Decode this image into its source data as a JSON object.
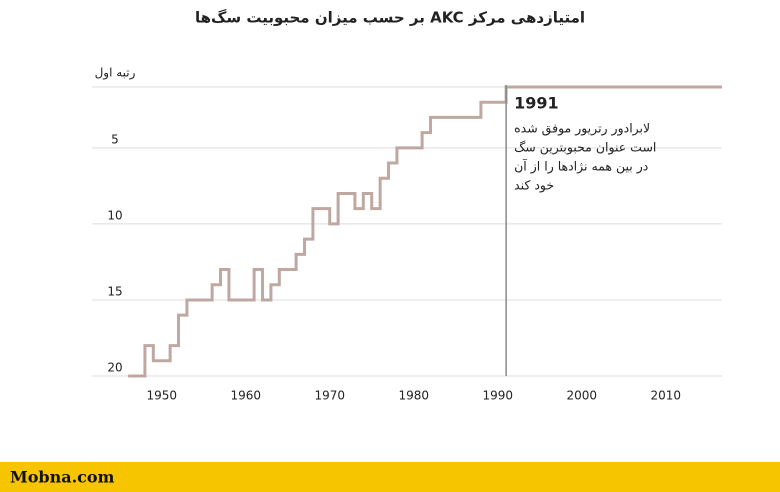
{
  "chart_data": {
    "type": "step",
    "title": "امتیازدهی مرکز AKC بر حسب میزان محبوبیت سگ‌ها",
    "x": [
      1946,
      1947,
      1948,
      1949,
      1950,
      1951,
      1952,
      1953,
      1954,
      1955,
      1956,
      1957,
      1958,
      1959,
      1960,
      1961,
      1962,
      1963,
      1964,
      1965,
      1966,
      1967,
      1968,
      1969,
      1970,
      1971,
      1972,
      1973,
      1974,
      1975,
      1976,
      1977,
      1978,
      1979,
      1980,
      1981,
      1982,
      1983,
      1984,
      1985,
      1986,
      1987,
      1988,
      1989,
      1990,
      1991,
      1992,
      1993,
      1994,
      1995,
      1996,
      1997,
      1998,
      1999,
      2000,
      2001,
      2002,
      2003,
      2004,
      2005,
      2006,
      2007,
      2008,
      2009,
      2010,
      2011,
      2012,
      2013,
      2014,
      2015,
      2016
    ],
    "values": [
      20,
      20,
      18,
      19,
      19,
      18,
      16,
      15,
      15,
      15,
      14,
      13,
      15,
      15,
      15,
      13,
      15,
      14,
      13,
      13,
      12,
      11,
      9,
      9,
      10,
      8,
      8,
      9,
      8,
      9,
      7,
      6,
      5,
      5,
      5,
      4,
      3,
      3,
      3,
      3,
      3,
      3,
      2,
      2,
      2,
      1,
      1,
      1,
      1,
      1,
      1,
      1,
      1,
      1,
      1,
      1,
      1,
      1,
      1,
      1,
      1,
      1,
      1,
      1,
      1,
      1,
      1,
      1,
      1,
      1,
      1
    ],
    "color": "#bfa8a2",
    "xlim": [
      1941.7,
      2016.7
    ],
    "xticks": [
      1950,
      1960,
      1970,
      1980,
      1990,
      2000,
      2010
    ],
    "ylim": [
      1,
      20
    ],
    "y_reversed": true,
    "yticks": [
      {
        "value": 1,
        "label": "رتبه اول"
      },
      5,
      10,
      15,
      20
    ],
    "grid": true,
    "annotation": {
      "x": 1991,
      "label": "1991",
      "lines": [
        "لابرادور رتریور موفق شده",
        "است عنوان محبوبترین سگ",
        "در بین همه نژادها را از آن",
        "خود کند"
      ]
    }
  },
  "footer": "Mobna.com"
}
